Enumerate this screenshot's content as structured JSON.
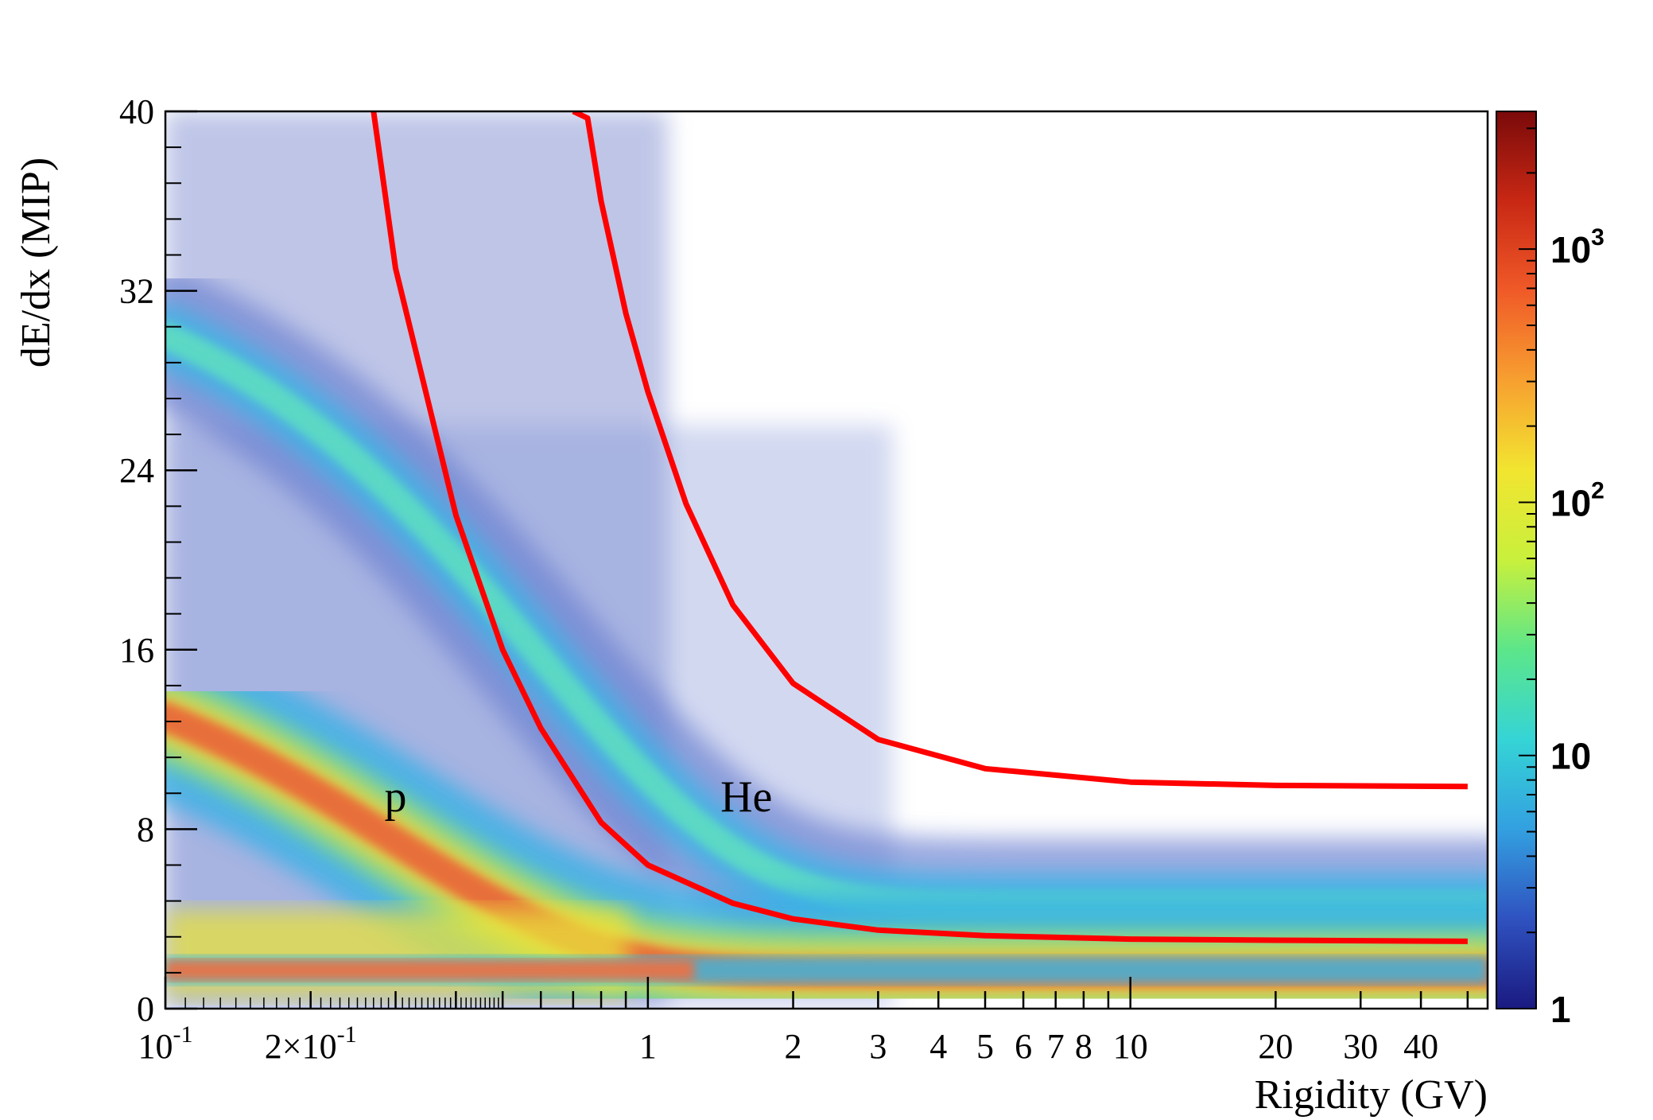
{
  "chart_data": {
    "type": "heatmap",
    "xlabel": "Rigidity (GV)",
    "ylabel": "dE/dx (MIP)",
    "x_scale": "log",
    "xlim": [
      0.1,
      55
    ],
    "ylim": [
      0,
      40
    ],
    "x_ticks_major": [
      {
        "value": 0.1,
        "label": "10",
        "sup": "-1"
      },
      {
        "value": 0.2,
        "label": "2×10",
        "sup": "-1"
      },
      {
        "value": 1,
        "label": "1"
      },
      {
        "value": 2,
        "label": "2"
      },
      {
        "value": 3,
        "label": "3"
      },
      {
        "value": 4,
        "label": "4"
      },
      {
        "value": 5,
        "label": "5"
      },
      {
        "value": 6,
        "label": "6"
      },
      {
        "value": 7,
        "label": "7"
      },
      {
        "value": 8,
        "label": "8"
      },
      {
        "value": 10,
        "label": "10"
      },
      {
        "value": 20,
        "label": "20"
      },
      {
        "value": 30,
        "label": "30"
      },
      {
        "value": 40,
        "label": "40"
      }
    ],
    "y_ticks": [
      {
        "value": 0,
        "label": "0"
      },
      {
        "value": 8,
        "label": "8"
      },
      {
        "value": 16,
        "label": "16"
      },
      {
        "value": 24,
        "label": "24"
      },
      {
        "value": 32,
        "label": "32"
      },
      {
        "value": 40,
        "label": "40"
      }
    ],
    "colorbar": {
      "scale": "log",
      "range": [
        1,
        3500
      ],
      "ticks": [
        {
          "value": 1,
          "label": "1"
        },
        {
          "value": 10,
          "label": "10"
        },
        {
          "value": 100,
          "label": "10",
          "sup": "2"
        },
        {
          "value": 1000,
          "label": "10",
          "sup": "3"
        }
      ],
      "palette": [
        "#1a1a80",
        "#2f52c0",
        "#33a0e0",
        "#35d4d6",
        "#5ce68a",
        "#c8f03c",
        "#f2e530",
        "#f7a030",
        "#f05a28",
        "#c82814",
        "#7a0a0a"
      ]
    },
    "annotations": [
      {
        "text": "p",
        "x": 0.3,
        "y": 9.5
      },
      {
        "text": "He",
        "x": 1.6,
        "y": 9.5
      }
    ],
    "bands": [
      {
        "name": "p",
        "peak_y_at_low_x": 13,
        "asymptote_y": 1.6,
        "scale_x": 0.3
      },
      {
        "name": "He",
        "peak_y_at_low_x": 30,
        "asymptote_y": 4.6,
        "scale_x": 0.6
      },
      {
        "name": "MIP floor",
        "y": 0.9
      }
    ],
    "cut_lines": [
      {
        "name": "lower cut",
        "color": "#ff0000",
        "points": [
          [
            0.27,
            40
          ],
          [
            0.3,
            33
          ],
          [
            0.4,
            22
          ],
          [
            0.5,
            16
          ],
          [
            0.6,
            12.5
          ],
          [
            0.8,
            8.3
          ],
          [
            1.0,
            6.4
          ],
          [
            1.5,
            4.7
          ],
          [
            2,
            4.0
          ],
          [
            3,
            3.5
          ],
          [
            5,
            3.25
          ],
          [
            10,
            3.1
          ],
          [
            20,
            3.05
          ],
          [
            50,
            3.0
          ]
        ]
      },
      {
        "name": "upper cut",
        "color": "#ff0000",
        "points": [
          [
            0.7,
            40
          ],
          [
            0.75,
            39.7
          ],
          [
            0.8,
            36
          ],
          [
            0.9,
            31
          ],
          [
            1.0,
            27.5
          ],
          [
            1.2,
            22.5
          ],
          [
            1.5,
            18
          ],
          [
            2,
            14.5
          ],
          [
            3,
            12
          ],
          [
            5,
            10.7
          ],
          [
            10,
            10.1
          ],
          [
            20,
            9.95
          ],
          [
            50,
            9.9
          ]
        ]
      }
    ]
  }
}
